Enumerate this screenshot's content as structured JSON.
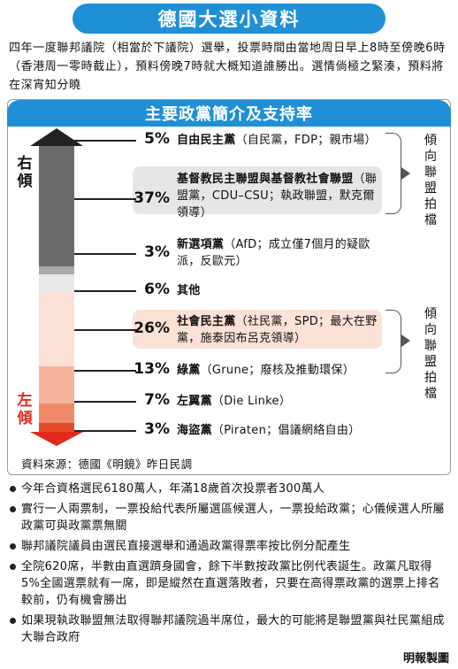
{
  "title": "德國大選小資料",
  "intro": "四年一度聯邦議院（相當於下議院）選舉，投票時間由當地周日早上8時至傍晚6時（香港周一零時截止），預料傍晚7時就大概知道誰勝出。選情倘極之緊湊，預料將在深宵知分曉",
  "panel_title": "主要政黨簡介及支持率",
  "side_labels": {
    "right": "右傾",
    "left": "左傾"
  },
  "parties": [
    {
      "pct": "5%",
      "name": "自由民主黨",
      "detail": "（自民黨，FDP；親市場）"
    },
    {
      "pct": "37%",
      "name": "基督教民主聯盟與基督教社會聯盟",
      "detail": "（聯盟黨，CDU–CSU；執政聯盟，默克爾領導）"
    },
    {
      "pct": "3%",
      "name": "新選項黨",
      "detail": "（AfD；成立僅7個月的疑歐派，反歐元）"
    },
    {
      "pct": "6%",
      "name": "其他",
      "detail": ""
    },
    {
      "pct": "26%",
      "name": "社會民主黨",
      "detail": "（社民黨，SPD；最大在野黨，施泰因布呂克領導）"
    },
    {
      "pct": "13%",
      "name": "綠黨",
      "detail": "（Grune；廢核及推動環保）"
    },
    {
      "pct": "7%",
      "name": "左翼黨",
      "detail": "（Die Linke）"
    },
    {
      "pct": "3%",
      "name": "海盜黨",
      "detail": "（Piraten；倡議網絡自由）"
    }
  ],
  "brackets": [
    "傾向聯盟拍檔",
    "傾向聯盟拍檔"
  ],
  "bar_support": [
    0.05,
    0.37,
    0.03,
    0.06,
    0.26,
    0.13,
    0.07,
    0.03
  ],
  "bar_colors": [
    "#6b6b6b",
    "#6b6b6b",
    "#a9a9a9",
    "#e8e8e8",
    "#fbe1d6",
    "#f5b49b",
    "#f08a68",
    "#e24a2a"
  ],
  "source": "資料來源：德國《明鏡》昨日民調",
  "bullets": [
    "今年合資格選民6180萬人，年滿18歲首次投票者300萬人",
    "實行一人兩票制，一票投給代表所屬選區候選人，一票投給政黨；心儀候選人所屬政黨可與政黨票無關",
    "聯邦議院議員由選民直接選舉和通過政黨得票率按比例分配產生",
    "全院620席，半數由直選躋身國會，餘下半數按政黨比例代表誕生。政黨凡取得5%全國選票就有一席，即是縱然在直選落敗者，只要在高得票政黨的選票上排名較前，仍有機會勝出",
    "如果現執政聯盟無法取得聯邦議院過半席位，最大的可能將是聯盟黨與社民黨組成大聯合政府"
  ],
  "credit": "明報製圖"
}
